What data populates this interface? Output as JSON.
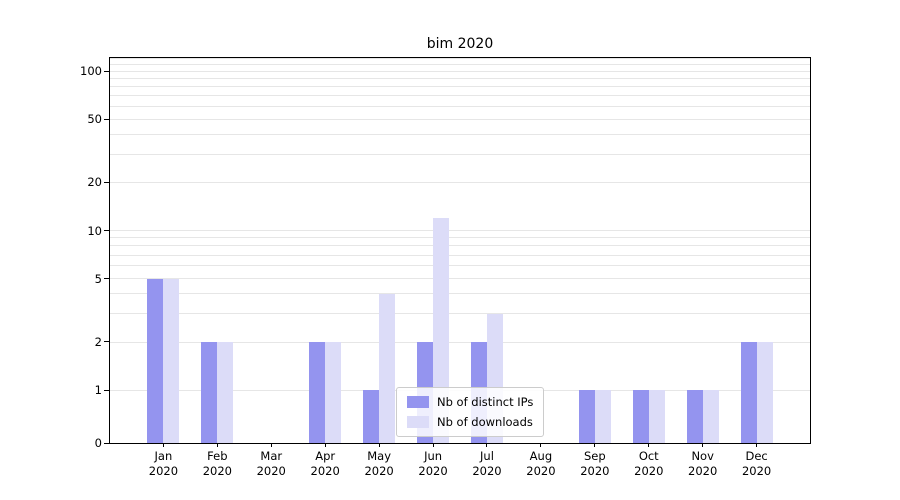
{
  "title": "bim 2020",
  "chart_data": {
    "type": "bar",
    "title": "bim 2020",
    "categories": [
      "Jan 2020",
      "Feb 2020",
      "Mar 2020",
      "Apr 2020",
      "May 2020",
      "Jun 2020",
      "Jul 2020",
      "Aug 2020",
      "Sep 2020",
      "Oct 2020",
      "Nov 2020",
      "Dec 2020"
    ],
    "series": [
      {
        "name": "Nb of distinct IPs",
        "color": "#9494ef",
        "values": [
          5,
          2,
          0,
          2,
          1,
          2,
          2,
          0,
          1,
          1,
          1,
          2
        ]
      },
      {
        "name": "Nb of downloads",
        "color": "#dcdcf8",
        "values": [
          5,
          2,
          0,
          2,
          4,
          12,
          3,
          0,
          1,
          1,
          1,
          2
        ]
      }
    ],
    "xlabel": "",
    "ylabel": "",
    "yscale": "symlog",
    "ytick_labels": [
      0,
      1,
      2,
      5,
      10,
      20,
      50,
      100
    ],
    "ylim": [
      0,
      123
    ],
    "grid": "horizontal-minor",
    "legend_position": "lower-center-inside",
    "plot_background": "#ffffff",
    "gridline_color": "#e6e6e6"
  }
}
